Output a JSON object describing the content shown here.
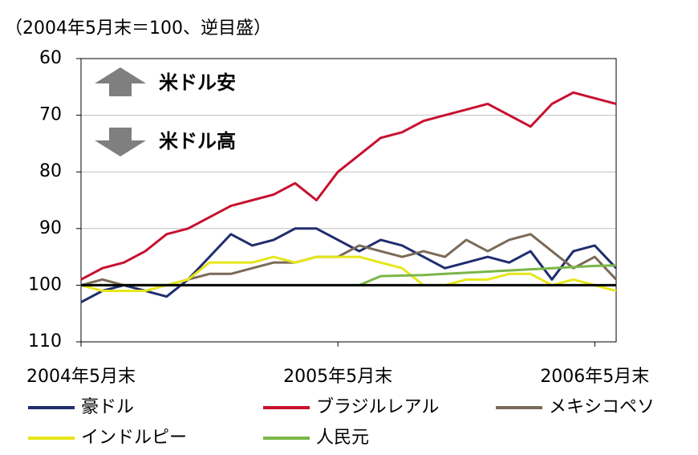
{
  "chart_data": {
    "type": "line",
    "y_axis_label": "（2004年5月末＝100、逆目盛）",
    "annotations": [
      "米ドル安",
      "米ドル高"
    ],
    "categories": [
      "2004年5月末",
      null,
      null,
      null,
      null,
      null,
      null,
      null,
      null,
      null,
      null,
      null,
      "2005年5月末",
      null,
      null,
      null,
      null,
      null,
      null,
      null,
      null,
      null,
      null,
      null,
      "2006年5月末",
      null
    ],
    "series": [
      {
        "name": "豪ドル",
        "color": "#1f2d6e",
        "values": [
          103,
          101,
          100,
          101,
          102,
          99,
          95,
          91,
          93,
          92,
          90,
          90,
          92,
          94,
          92,
          93,
          95,
          97,
          96,
          95,
          96,
          94,
          99,
          94,
          93,
          97
        ]
      },
      {
        "name": "ブラジルレアル",
        "color": "#c8102e",
        "values": [
          99,
          97,
          96,
          94,
          91,
          90,
          88,
          86,
          85,
          84,
          82,
          85,
          80,
          77,
          74,
          73,
          71,
          70,
          69,
          68,
          70,
          72,
          68,
          66,
          67,
          68
        ]
      },
      {
        "name": "メキシコペソ",
        "color": "#7a6a58",
        "values": [
          100,
          99,
          100,
          100,
          100,
          99,
          98,
          98,
          97,
          96,
          96,
          95,
          95,
          93,
          94,
          95,
          94,
          95,
          92,
          94,
          92,
          91,
          94,
          97,
          95,
          99
        ]
      },
      {
        "name": "インドルピー",
        "color": "#e6e619",
        "values": [
          100,
          101,
          101,
          101,
          100,
          99,
          96,
          96,
          96,
          95,
          96,
          95,
          95,
          95,
          96,
          97,
          100,
          100,
          99,
          99,
          98,
          98,
          100,
          99,
          100,
          101
        ]
      },
      {
        "name": "人民元",
        "color": "#7ab648",
        "values": [
          100,
          100,
          100,
          100,
          100,
          100,
          100,
          100,
          100,
          100,
          100,
          100,
          100,
          100,
          98.4,
          98.3,
          98.2,
          98,
          97.8,
          97.6,
          97.4,
          97.2,
          97,
          96.8,
          96.6,
          96.5
        ]
      }
    ],
    "ylim": [
      60,
      110
    ],
    "yticks": [
      60,
      70,
      80,
      90,
      100,
      110
    ],
    "inverted": true,
    "grid": true,
    "reference_line": 100
  }
}
